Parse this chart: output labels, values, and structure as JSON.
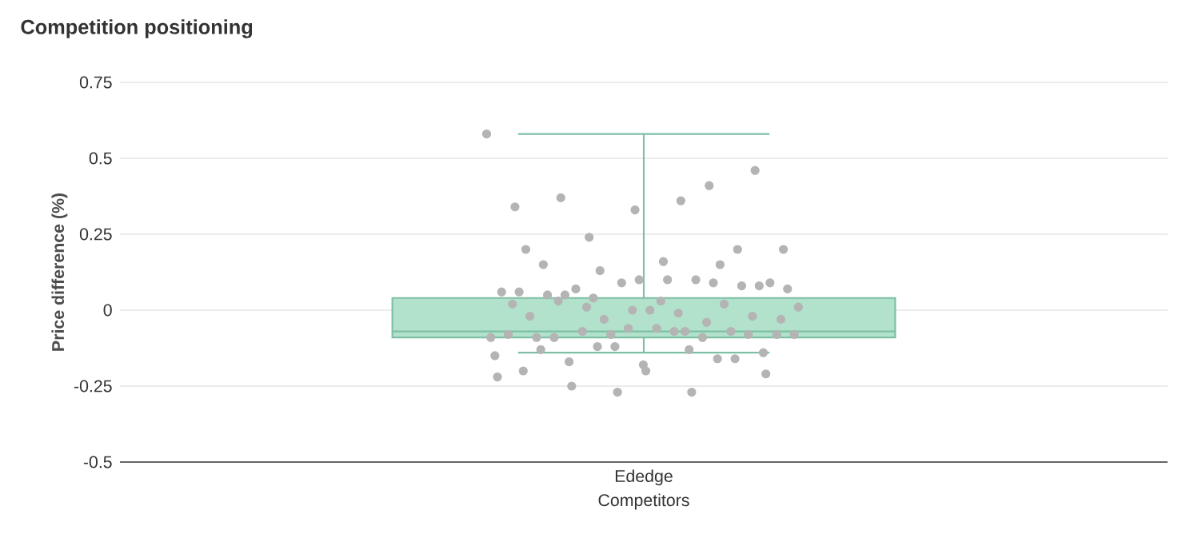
{
  "chart_data": {
    "type": "box",
    "title": "Competition positioning",
    "xlabel": "Competitors",
    "ylabel": "Price difference (%)",
    "categories": [
      "Ededge"
    ],
    "ylim": [
      -0.5,
      0.75
    ],
    "yticks": [
      -0.5,
      -0.25,
      0,
      0.25,
      0.5,
      0.75
    ],
    "grid": "y",
    "series": [
      {
        "type": "box",
        "color": "#b2e2cc",
        "boxes": [
          {
            "low": -0.14,
            "q1": -0.09,
            "median": -0.07,
            "q3": 0.04,
            "high": 0.58
          }
        ]
      },
      {
        "type": "scatter",
        "color": "#b4b4b4",
        "x": [
          "Ededge",
          "Ededge",
          "Ededge",
          "Ededge",
          "Ededge",
          "Ededge",
          "Ededge",
          "Ededge",
          "Ededge",
          "Ededge",
          "Ededge",
          "Ededge",
          "Ededge",
          "Ededge",
          "Ededge",
          "Ededge",
          "Ededge",
          "Ededge",
          "Ededge",
          "Ededge",
          "Ededge",
          "Ededge",
          "Ededge",
          "Ededge",
          "Ededge",
          "Ededge",
          "Ededge",
          "Ededge",
          "Ededge",
          "Ededge",
          "Ededge",
          "Ededge",
          "Ededge",
          "Ededge",
          "Ededge",
          "Ededge",
          "Ededge",
          "Ededge",
          "Ededge",
          "Ededge",
          "Ededge",
          "Ededge",
          "Ededge",
          "Ededge",
          "Ededge",
          "Ededge",
          "Ededge",
          "Ededge",
          "Ededge",
          "Ededge",
          "Ededge",
          "Ededge",
          "Ededge",
          "Ededge",
          "Ededge",
          "Ededge",
          "Ededge",
          "Ededge",
          "Ededge",
          "Ededge",
          "Ededge",
          "Ededge",
          "Ededge",
          "Ededge",
          "Ededge",
          "Ededge",
          "Ededge",
          "Ededge",
          "Ededge",
          "Ededge",
          "Ededge",
          "Ededge",
          "Ededge",
          "Ededge",
          "Ededge",
          "Ededge"
        ],
        "values": [
          0.58,
          0.36,
          0.37,
          0.46,
          0.33,
          0.34,
          0.41,
          0.24,
          0.2,
          0.16,
          0.15,
          0.2,
          -0.27,
          -0.22,
          -0.27,
          -0.25,
          -0.21,
          -0.2,
          0.2,
          0.15,
          0.13,
          -0.08,
          -0.07,
          -0.09,
          -0.08,
          -0.06,
          -0.08,
          -0.09,
          -0.07,
          -0.08,
          -0.06,
          -0.09,
          -0.07,
          -0.08,
          -0.09,
          -0.07,
          0.05,
          0.08,
          0.1,
          0.06,
          0.09,
          0.04,
          0.07,
          0.1,
          0.05,
          0.08,
          0.09,
          0.06,
          0.1,
          0.07,
          0.09,
          0.0,
          -0.02,
          0.02,
          -0.03,
          0.01,
          -0.01,
          0.03,
          -0.02,
          0.0,
          0.02,
          -0.04,
          0.01,
          -0.03,
          0.03,
          -0.13,
          -0.16,
          -0.12,
          -0.15,
          -0.13,
          -0.17,
          -0.14,
          -0.18,
          -0.2,
          -0.16,
          -0.12
        ]
      }
    ]
  }
}
